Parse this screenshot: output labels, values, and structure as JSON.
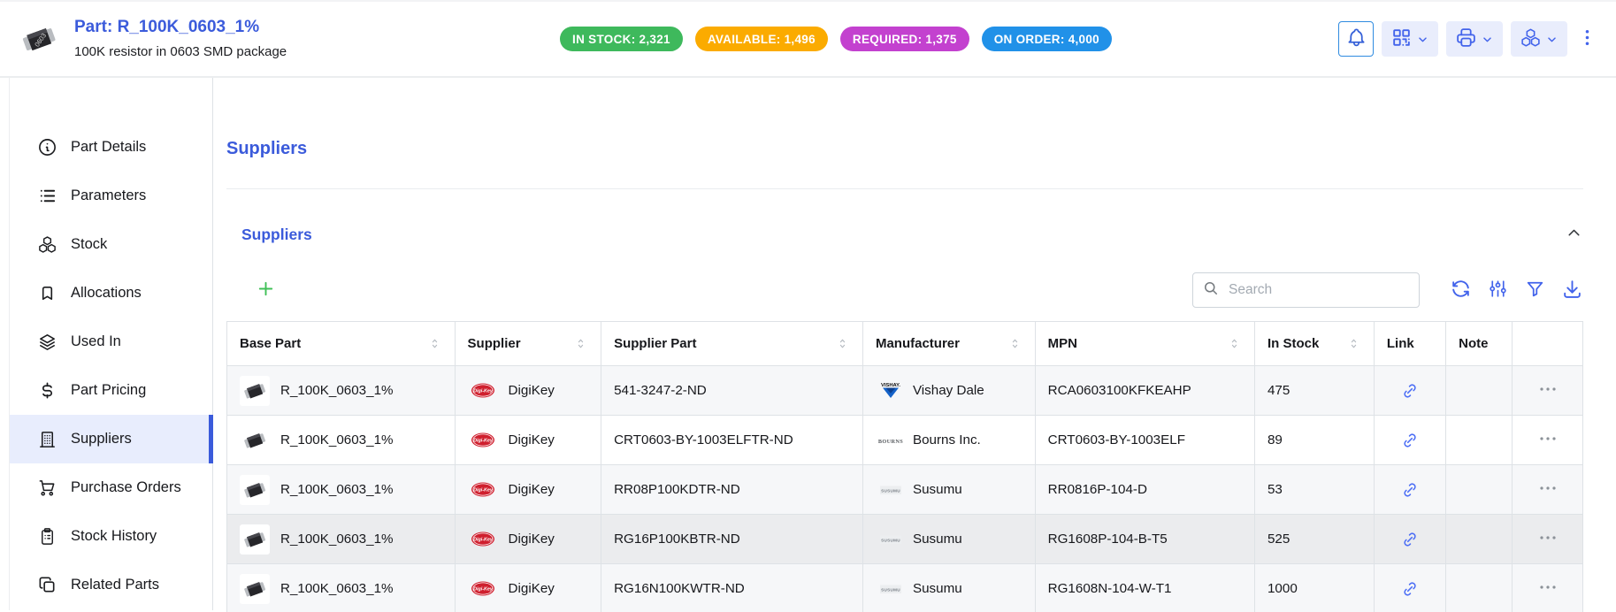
{
  "colors": {
    "accent": "#3b5bdb",
    "icon_blue": "#4263eb",
    "active_nav_bg": "#e8edfd",
    "table_border": "#dee2e6",
    "row_stripe": "#f6f7f9",
    "add_green": "#40c057"
  },
  "header": {
    "part_title": "Part: R_100K_0603_1%",
    "part_description": "100K resistor in 0603 SMD package",
    "badges": [
      {
        "name": "in-stock",
        "label": "IN STOCK: 2,321",
        "color": "#3eb95c"
      },
      {
        "name": "available",
        "label": "AVAILABLE: 1,496",
        "color": "#fbab00"
      },
      {
        "name": "required",
        "label": "REQUIRED: 1,375",
        "color": "#c341cf"
      },
      {
        "name": "on-order",
        "label": "ON ORDER: 4,000",
        "color": "#2191e8"
      }
    ],
    "actions": [
      {
        "name": "notifications",
        "icon": "bell",
        "style": "outline",
        "has_dropdown": false
      },
      {
        "name": "barcode-actions",
        "icon": "qrcode",
        "style": "filled",
        "has_dropdown": true
      },
      {
        "name": "print-actions",
        "icon": "printer",
        "style": "filled",
        "has_dropdown": true
      },
      {
        "name": "stock-actions",
        "icon": "packages",
        "style": "filled",
        "has_dropdown": true
      },
      {
        "name": "more-options",
        "icon": "dots-vertical",
        "style": "plain",
        "has_dropdown": false
      }
    ]
  },
  "sidebar": {
    "items": [
      {
        "label": "Part Details",
        "icon": "info-circle",
        "active": false
      },
      {
        "label": "Parameters",
        "icon": "list",
        "active": false
      },
      {
        "label": "Stock",
        "icon": "packages",
        "active": false
      },
      {
        "label": "Allocations",
        "icon": "bookmark",
        "active": false
      },
      {
        "label": "Used In",
        "icon": "stack",
        "active": false
      },
      {
        "label": "Part Pricing",
        "icon": "currency-dollar",
        "active": false
      },
      {
        "label": "Suppliers",
        "icon": "building",
        "active": true
      },
      {
        "label": "Purchase Orders",
        "icon": "shopping-cart",
        "active": false
      },
      {
        "label": "Stock History",
        "icon": "clipboard-list",
        "active": false
      },
      {
        "label": "Related Parts",
        "icon": "copy",
        "active": false
      }
    ]
  },
  "main": {
    "page_title": "Suppliers",
    "panel": {
      "title": "Suppliers",
      "collapse_icon": "chevron-up",
      "search_placeholder": "Search",
      "toolbar_icons": [
        "add",
        "refresh",
        "adjustments",
        "filter",
        "download"
      ],
      "table": {
        "columns": [
          {
            "key": "base_part",
            "label": "Base Part",
            "sortable": true,
            "width": "16.8%"
          },
          {
            "key": "supplier",
            "label": "Supplier",
            "sortable": true,
            "width": "10.8%"
          },
          {
            "key": "supplier_part",
            "label": "Supplier Part",
            "sortable": true,
            "width": "19.3%"
          },
          {
            "key": "manufacturer",
            "label": "Manufacturer",
            "sortable": true,
            "width": "12.7%"
          },
          {
            "key": "mpn",
            "label": "MPN",
            "sortable": true,
            "width": "16.2%"
          },
          {
            "key": "in_stock",
            "label": "In Stock",
            "sortable": true,
            "width": "8.8%"
          },
          {
            "key": "link",
            "label": "Link",
            "sortable": false,
            "width": "5.3%"
          },
          {
            "key": "note",
            "label": "Note",
            "sortable": false,
            "width": "4.9%"
          },
          {
            "key": "actions",
            "label": "",
            "sortable": false,
            "width": "5.2%"
          }
        ],
        "rows": [
          {
            "base_part": "R_100K_0603_1%",
            "supplier": "DigiKey",
            "supplier_logo": "digikey",
            "supplier_part": "541-3247-2-ND",
            "manufacturer": "Vishay Dale",
            "manufacturer_logo": "vishay",
            "mpn": "RCA0603100KFKEAHP",
            "in_stock": "475",
            "shade": "stripe"
          },
          {
            "base_part": "R_100K_0603_1%",
            "supplier": "DigiKey",
            "supplier_logo": "digikey",
            "supplier_part": "CRT0603-BY-1003ELFTR-ND",
            "manufacturer": "Bourns Inc.",
            "manufacturer_logo": "bourns",
            "mpn": "CRT0603-BY-1003ELF",
            "in_stock": "89",
            "shade": "none"
          },
          {
            "base_part": "R_100K_0603_1%",
            "supplier": "DigiKey",
            "supplier_logo": "digikey",
            "supplier_part": "RR08P100KDTR-ND",
            "manufacturer": "Susumu",
            "manufacturer_logo": "susumu",
            "mpn": "RR0816P-104-D",
            "in_stock": "53",
            "shade": "stripe"
          },
          {
            "base_part": "R_100K_0603_1%",
            "supplier": "DigiKey",
            "supplier_logo": "digikey",
            "supplier_part": "RG16P100KBTR-ND",
            "manufacturer": "Susumu",
            "manufacturer_logo": "susumu",
            "mpn": "RG1608P-104-B-T5",
            "in_stock": "525",
            "shade": "hover"
          },
          {
            "base_part": "R_100K_0603_1%",
            "supplier": "DigiKey",
            "supplier_logo": "digikey",
            "supplier_part": "RG16N100KWTR-ND",
            "manufacturer": "Susumu",
            "manufacturer_logo": "susumu",
            "mpn": "RG1608N-104-W-T1",
            "in_stock": "1000",
            "shade": "stripe"
          }
        ]
      }
    }
  }
}
